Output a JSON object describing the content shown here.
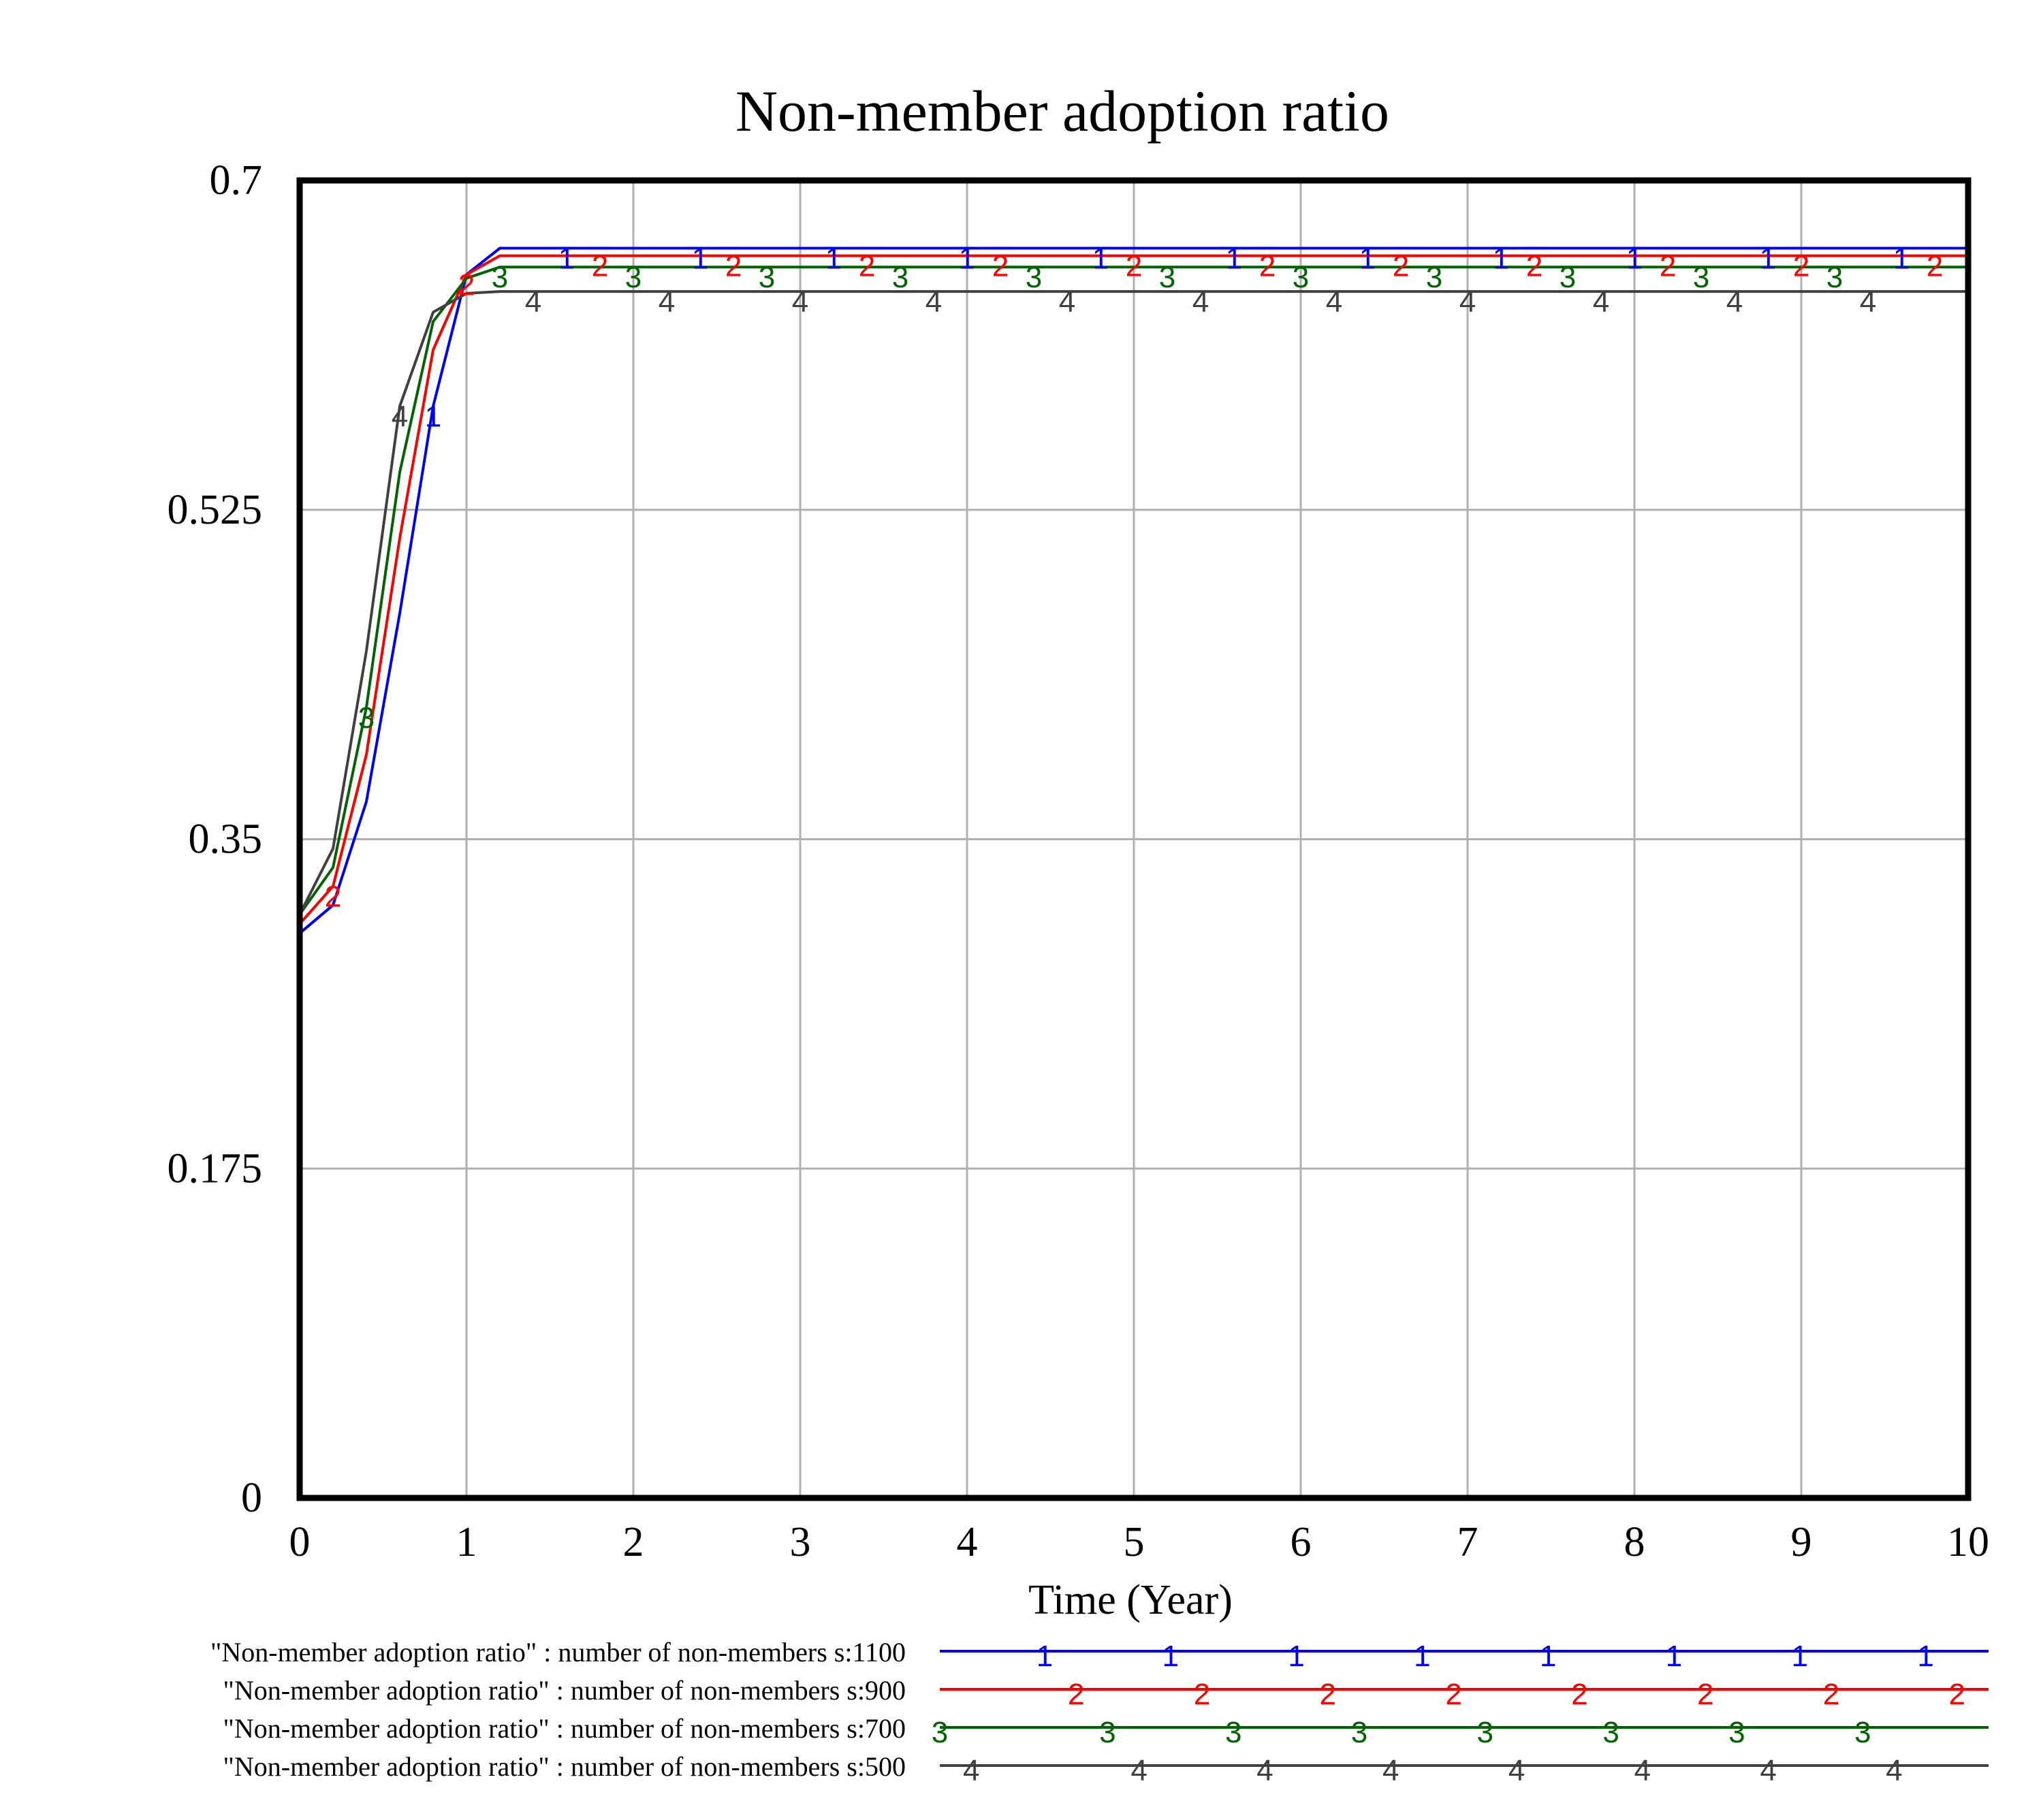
{
  "chart_data": {
    "type": "line",
    "title": "Non-member adoption ratio",
    "xlabel": "Time (Year)",
    "ylabel": "",
    "xlim": [
      0,
      10
    ],
    "ylim": [
      0,
      0.7
    ],
    "x_ticks": [
      "0",
      "1",
      "2",
      "3",
      "4",
      "5",
      "6",
      "7",
      "8",
      "9",
      "10"
    ],
    "y_ticks": [
      "0.7",
      "0.525",
      "0.35",
      "0.175",
      "0"
    ],
    "y_tick_values": [
      0.7,
      0.525,
      0.35,
      0.175,
      0
    ],
    "grid": true,
    "legend_position": "bottom",
    "series": [
      {
        "name": "\"Non-member adoption ratio\" : number of non-members s:1100",
        "marker": "1",
        "color": "#0000ff",
        "x": [
          0,
          0.2,
          0.4,
          0.6,
          0.8,
          1.0,
          1.2,
          2,
          4,
          6,
          8,
          10
        ],
        "values": [
          0.3,
          0.315,
          0.37,
          0.47,
          0.58,
          0.65,
          0.664,
          0.664,
          0.664,
          0.664,
          0.664,
          0.664
        ],
        "marker_x": [
          0.8,
          1.6,
          2.4,
          3.2,
          4.0,
          4.8,
          5.6,
          6.4,
          7.2,
          8.0,
          8.8,
          9.6
        ]
      },
      {
        "name": "\"Non-member adoption ratio\" : number of non-members s:900",
        "marker": "2",
        "color": "#ff0000",
        "x": [
          0,
          0.2,
          0.4,
          0.6,
          0.8,
          1.0,
          1.2,
          2,
          4,
          6,
          8,
          10
        ],
        "values": [
          0.305,
          0.325,
          0.395,
          0.51,
          0.61,
          0.65,
          0.66,
          0.66,
          0.66,
          0.66,
          0.66,
          0.66
        ],
        "marker_x": [
          0.2,
          1.0,
          1.8,
          2.6,
          3.4,
          4.2,
          5.0,
          5.8,
          6.6,
          7.4,
          8.2,
          9.0,
          9.8
        ]
      },
      {
        "name": "\"Non-member adoption ratio\" : number of non-members s:700",
        "marker": "3",
        "color": "#006400",
        "x": [
          0,
          0.2,
          0.4,
          0.6,
          0.8,
          1.0,
          1.2,
          2,
          4,
          6,
          8,
          10
        ],
        "values": [
          0.31,
          0.335,
          0.42,
          0.545,
          0.625,
          0.648,
          0.654,
          0.654,
          0.654,
          0.654,
          0.654,
          0.654
        ],
        "marker_x": [
          0.4,
          1.2,
          2.0,
          2.8,
          3.6,
          4.4,
          5.2,
          6.0,
          6.8,
          7.6,
          8.4,
          9.2
        ]
      },
      {
        "name": "\"Non-member adoption ratio\" : number of non-members s:500",
        "marker": "4",
        "color": "#404040",
        "x": [
          0,
          0.2,
          0.4,
          0.6,
          0.8,
          1.0,
          1.2,
          2,
          4,
          6,
          8,
          10
        ],
        "values": [
          0.31,
          0.345,
          0.45,
          0.58,
          0.63,
          0.64,
          0.641,
          0.641,
          0.641,
          0.641,
          0.641,
          0.641
        ],
        "marker_x": [
          0.6,
          1.4,
          2.2,
          3.0,
          3.8,
          4.6,
          5.4,
          6.2,
          7.0,
          7.8,
          8.6,
          9.4
        ]
      }
    ]
  }
}
